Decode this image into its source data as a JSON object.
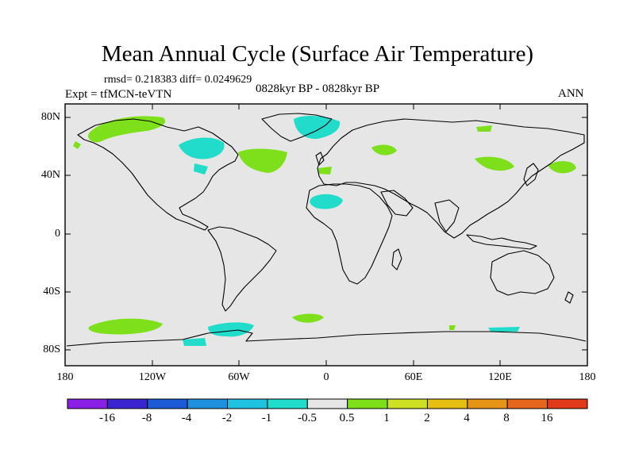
{
  "title": "Mean Annual Cycle (Surface Air Temperature)",
  "stats": "rmsd= 0.218383 diff= 0.0249629",
  "experiment": "Expt = tfMCN-teVTN",
  "period": "0828kyr BP - 0828kyr BP",
  "season": "ANN",
  "map": {
    "projection": "cylindrical equidistant",
    "lon_range": [
      -180,
      180
    ],
    "lat_range": [
      -90,
      90
    ],
    "background_color": "#e6e6e6",
    "y_ticks": [
      "80N",
      "40N",
      "0",
      "40S",
      "80S"
    ],
    "x_ticks": [
      "180",
      "120W",
      "60W",
      "0",
      "60E",
      "120E",
      "180"
    ]
  },
  "colorbar": {
    "labels": [
      "-16",
      "-8",
      "-4",
      "-2",
      "-1",
      "-0.5",
      "0.5",
      "1",
      "2",
      "4",
      "8",
      "16"
    ],
    "colors": [
      "#8a1fe6",
      "#3a24cf",
      "#1c5ad6",
      "#1f90dd",
      "#20c2e2",
      "#22dccb",
      "#e6e6e6",
      "#7de01a",
      "#cde023",
      "#e6bf12",
      "#e69416",
      "#e5661c",
      "#e13a1a"
    ]
  },
  "anomaly_regions": [
    {
      "name": "arctic-alaska",
      "color": "#7de01a"
    },
    {
      "name": "canada-arctic",
      "color": "#22dccb"
    },
    {
      "name": "greenland",
      "color": "#22dccb"
    },
    {
      "name": "north-atlantic",
      "color": "#7de01a"
    },
    {
      "name": "north-africa",
      "color": "#22dccb"
    },
    {
      "name": "central-asia",
      "color": "#7de01a"
    },
    {
      "name": "southern-ocean",
      "color": "#7de01a"
    },
    {
      "name": "antarctic-peninsula",
      "color": "#22dccb"
    }
  ]
}
